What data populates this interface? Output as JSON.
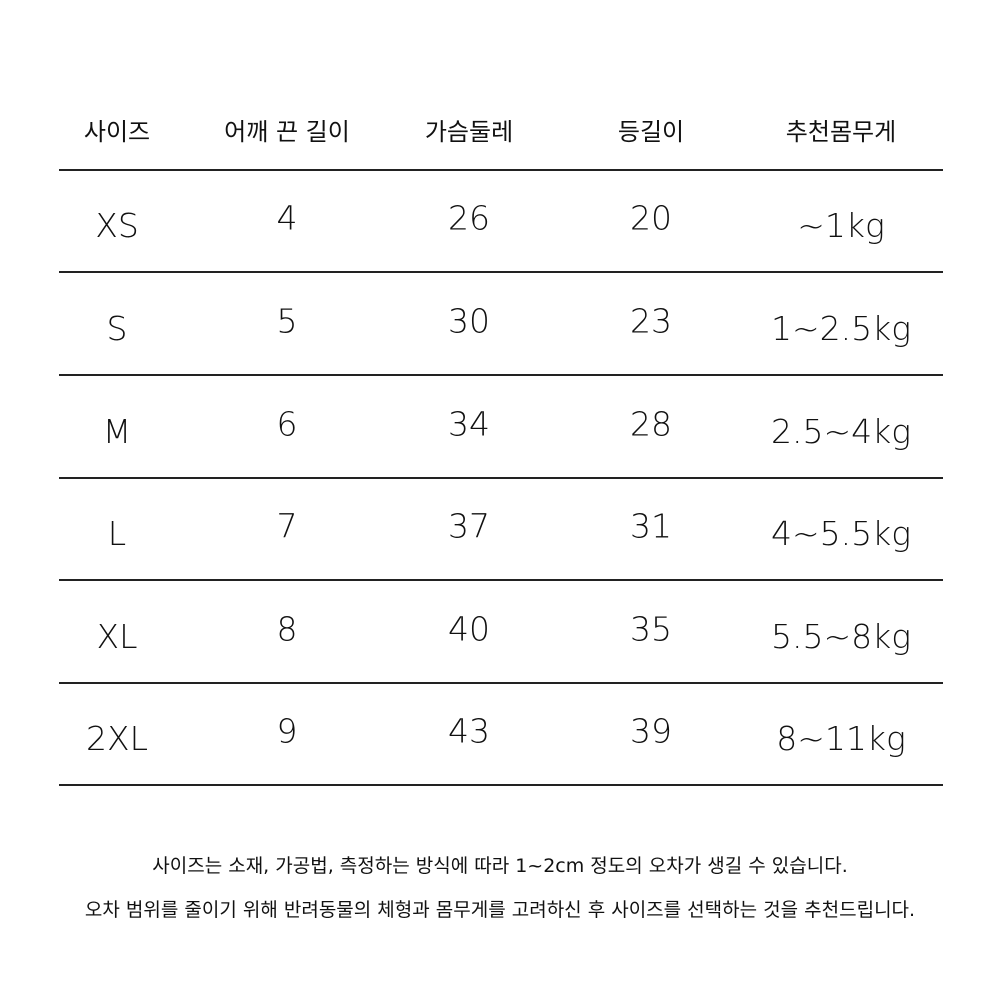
{
  "table": {
    "headers": [
      "사이즈",
      "어깨 끈 길이",
      "가슴둘레",
      "등길이",
      "추천몸무게"
    ],
    "rows": [
      [
        "XS",
        "4",
        "26",
        "20",
        "~1kg"
      ],
      [
        "S",
        "5",
        "30",
        "23",
        "1~2.5kg"
      ],
      [
        "M",
        "6",
        "34",
        "28",
        "2.5~4kg"
      ],
      [
        "L",
        "7",
        "37",
        "31",
        "4~5.5kg"
      ],
      [
        "XL",
        "8",
        "40",
        "35",
        "5.5~8kg"
      ],
      [
        "2XL",
        "9",
        "43",
        "39",
        "8~11kg"
      ]
    ]
  },
  "notes": [
    "사이즈는 소재, 가공법, 측정하는 방식에 따라 1~2cm 정도의 오차가 생길 수 있습니다.",
    "오차 범위를 줄이기 위해 반려동물의 체형과 몸무게를 고려하신 후 사이즈를 선택하는 것을 추천드립니다."
  ]
}
